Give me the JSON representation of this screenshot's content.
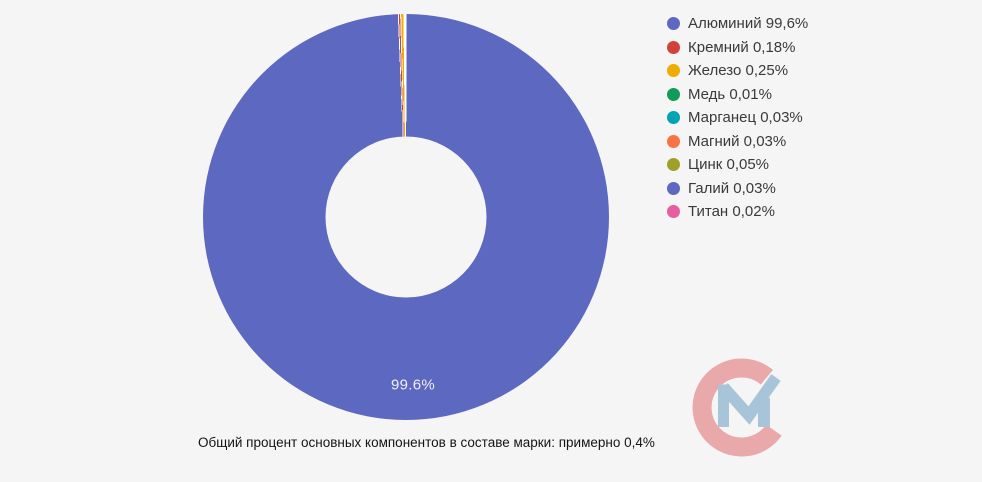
{
  "page": {
    "background": "#f5f5f5"
  },
  "chart_data": {
    "type": "pie",
    "donut": true,
    "start_angle_deg": 0,
    "direction": "clockwise",
    "legend_position": "right",
    "grid": false,
    "title": "",
    "slices": [
      {
        "label": "Алюминий",
        "value": 99.6,
        "legend_label": "Алюминий 99,6%",
        "color": "#5d68c0"
      },
      {
        "label": "Кремний",
        "value": 0.18,
        "legend_label": "Кремний 0,18%",
        "color": "#d2423c"
      },
      {
        "label": "Железо",
        "value": 0.25,
        "legend_label": "Железо 0,25%",
        "color": "#f0ac00"
      },
      {
        "label": "Медь",
        "value": 0.01,
        "legend_label": "Медь 0,01%",
        "color": "#129a58"
      },
      {
        "label": "Марганец",
        "value": 0.03,
        "legend_label": "Марганец 0,03%",
        "color": "#00a4b4"
      },
      {
        "label": "Магний",
        "value": 0.03,
        "legend_label": "Магний 0,03%",
        "color": "#fa7245"
      },
      {
        "label": "Цинк",
        "value": 0.05,
        "legend_label": "Цинк 0,05%",
        "color": "#a0a028"
      },
      {
        "label": "Галий",
        "value": 0.03,
        "legend_label": "Галий 0,03%",
        "color": "#5d68c0"
      },
      {
        "label": "Титан",
        "value": 0.02,
        "legend_label": "Титан 0,02%",
        "color": "#e75d9d"
      }
    ],
    "slice_label": {
      "text": "99.6%",
      "color": "#eef0f8"
    },
    "slice_border_color": "#ffffff"
  },
  "caption": {
    "text": "Общий процент основных компонентов в составе марки: примерно 0,4%"
  },
  "watermark": {
    "name": "cm-logo",
    "ring_color": "#e9a8aa",
    "m_color": "#a7c4d9"
  }
}
